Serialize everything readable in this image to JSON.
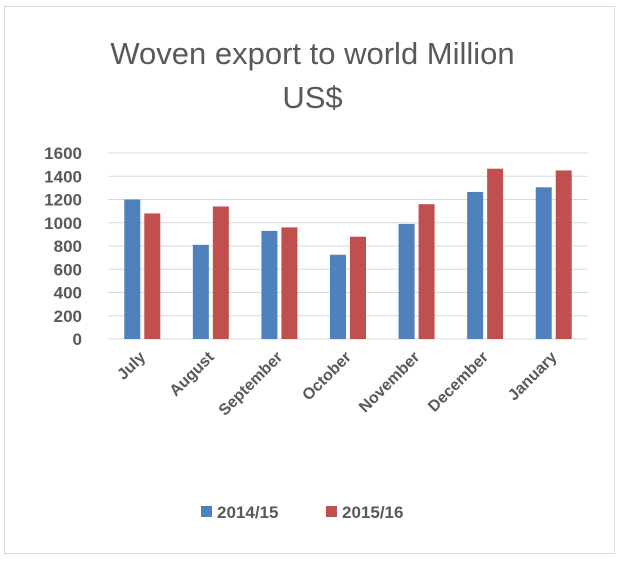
{
  "chart_data": {
    "type": "bar",
    "title_lines": [
      "Woven export to world Million",
      "US$"
    ],
    "categories": [
      "July",
      "August",
      "September",
      "October",
      "November",
      "December",
      "January"
    ],
    "series": [
      {
        "name": "2014/15",
        "color": "#4f81bd",
        "values": [
          1200,
          810,
          930,
          725,
          990,
          1265,
          1305
        ]
      },
      {
        "name": "2015/16",
        "color": "#c0504d",
        "values": [
          1080,
          1140,
          960,
          880,
          1160,
          1465,
          1450
        ]
      }
    ],
    "ylim": [
      0,
      1600
    ],
    "yticks": [
      0,
      200,
      400,
      600,
      800,
      1000,
      1200,
      1400,
      1600
    ],
    "xlabel": "",
    "ylabel": "",
    "grid": true,
    "legend_position": "bottom"
  }
}
